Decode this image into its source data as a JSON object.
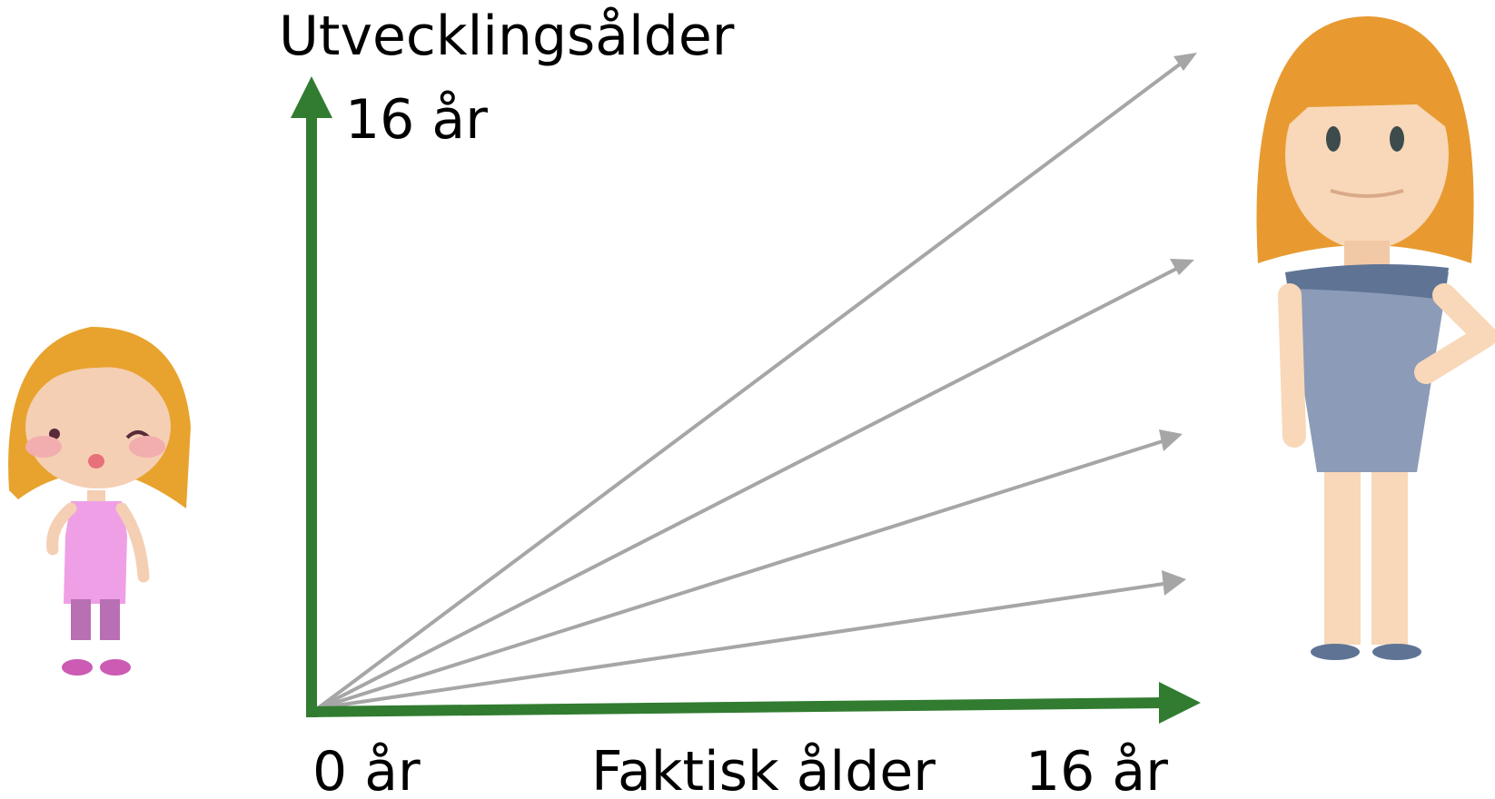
{
  "axes": {
    "y_label": "Utvecklingsålder",
    "y_max_label": "16 år",
    "origin_label": "0 år",
    "x_label": "Faktisk ålder",
    "x_max_label": "16 år"
  }
}
